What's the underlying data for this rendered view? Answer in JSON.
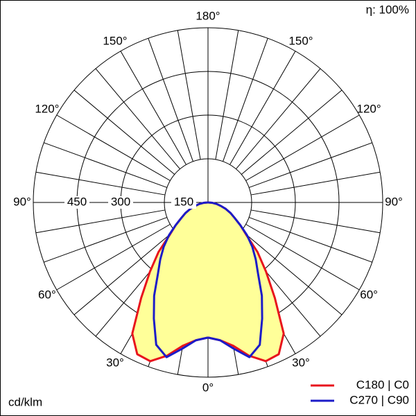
{
  "chart_data": {
    "type": "polar",
    "corner_note": "η: 100%",
    "unit_label": "cd/klm",
    "angles": [
      0,
      5,
      10,
      15,
      20,
      25,
      30,
      35,
      40,
      45,
      50,
      55,
      60,
      65,
      70,
      75,
      80,
      85,
      90
    ],
    "series": [
      {
        "name": "C180 | C0",
        "color": "#e8141c",
        "fill": "#ffff99",
        "values": [
          464,
          475,
          500,
          545,
          580,
          575,
          520,
          400,
          310,
          240,
          170,
          135,
          105,
          85,
          65,
          45,
          30,
          15,
          0
        ]
      },
      {
        "name": "C270 | C90",
        "color": "#1c1cc8",
        "values": [
          464,
          475,
          510,
          550,
          520,
          440,
          370,
          300,
          255,
          215,
          175,
          135,
          105,
          85,
          65,
          45,
          30,
          15,
          0
        ]
      }
    ],
    "rlim": [
      0,
      600
    ],
    "rticks": [
      150,
      300,
      450
    ],
    "angle_ticks": [
      {
        "value": 180,
        "label": "180°"
      },
      {
        "value": -150,
        "label": "150°"
      },
      {
        "value": 150,
        "label": "150°"
      },
      {
        "value": -120,
        "label": "120°"
      },
      {
        "value": 120,
        "label": "120°"
      },
      {
        "value": -90,
        "label": "90°"
      },
      {
        "value": 90,
        "label": "90°"
      },
      {
        "value": -60,
        "label": "60°"
      },
      {
        "value": 60,
        "label": "60°"
      },
      {
        "value": -30,
        "label": "30°"
      },
      {
        "value": 30,
        "label": "30°"
      },
      {
        "value": 0,
        "label": "0°"
      }
    ]
  }
}
